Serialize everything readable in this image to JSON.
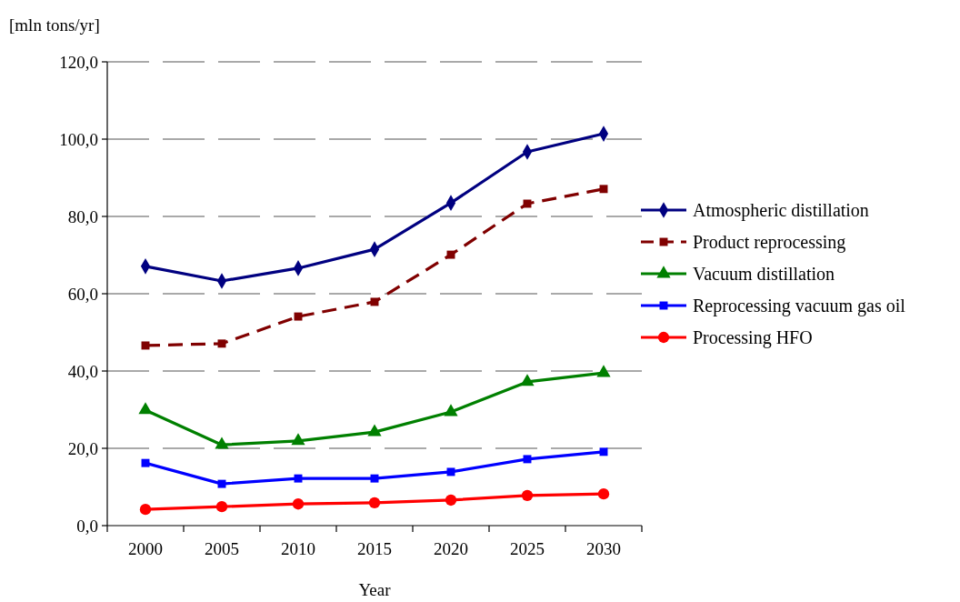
{
  "chart_data": {
    "type": "line",
    "xlabel": "Year",
    "ylabel": "[mln tons/yr]",
    "categories": [
      "2000",
      "2005",
      "2010",
      "2015",
      "2020",
      "2025",
      "2030"
    ],
    "series": [
      {
        "name": "Atmospheric distillation",
        "color": "#000080",
        "marker": "diamond",
        "line_style": "solid",
        "values": [
          67.1,
          63.3,
          66.6,
          71.5,
          83.5,
          96.7,
          101.4
        ]
      },
      {
        "name": "Product reprocessing",
        "color": "#800000",
        "marker": "square",
        "line_style": "dashed",
        "values": [
          46.6,
          47.1,
          54.1,
          57.9,
          70.1,
          83.3,
          87.1
        ]
      },
      {
        "name": "Vacuum distillation",
        "color": "#008000",
        "marker": "triangle",
        "line_style": "solid",
        "values": [
          29.9,
          20.9,
          21.9,
          24.2,
          29.4,
          37.2,
          39.5
        ]
      },
      {
        "name": "Reprocessing vacuum gas oil",
        "color": "#0000ff",
        "marker": "square",
        "line_style": "solid",
        "values": [
          16.2,
          10.8,
          12.2,
          12.2,
          13.9,
          17.2,
          19.1
        ]
      },
      {
        "name": "Processing HFO",
        "color": "#ff0000",
        "marker": "circle",
        "line_style": "solid",
        "values": [
          4.2,
          4.9,
          5.6,
          5.9,
          6.6,
          7.8,
          8.2
        ]
      }
    ],
    "ylim": [
      0,
      120
    ],
    "yticks": [
      {
        "value": 0,
        "label": "0,0"
      },
      {
        "value": 20,
        "label": "20,0"
      },
      {
        "value": 40,
        "label": "40,0"
      },
      {
        "value": 60,
        "label": "60,0"
      },
      {
        "value": 80,
        "label": "80,0"
      },
      {
        "value": 100,
        "label": "100,0"
      },
      {
        "value": 120,
        "label": "120,0"
      }
    ],
    "grid": "y",
    "legend": "right"
  }
}
